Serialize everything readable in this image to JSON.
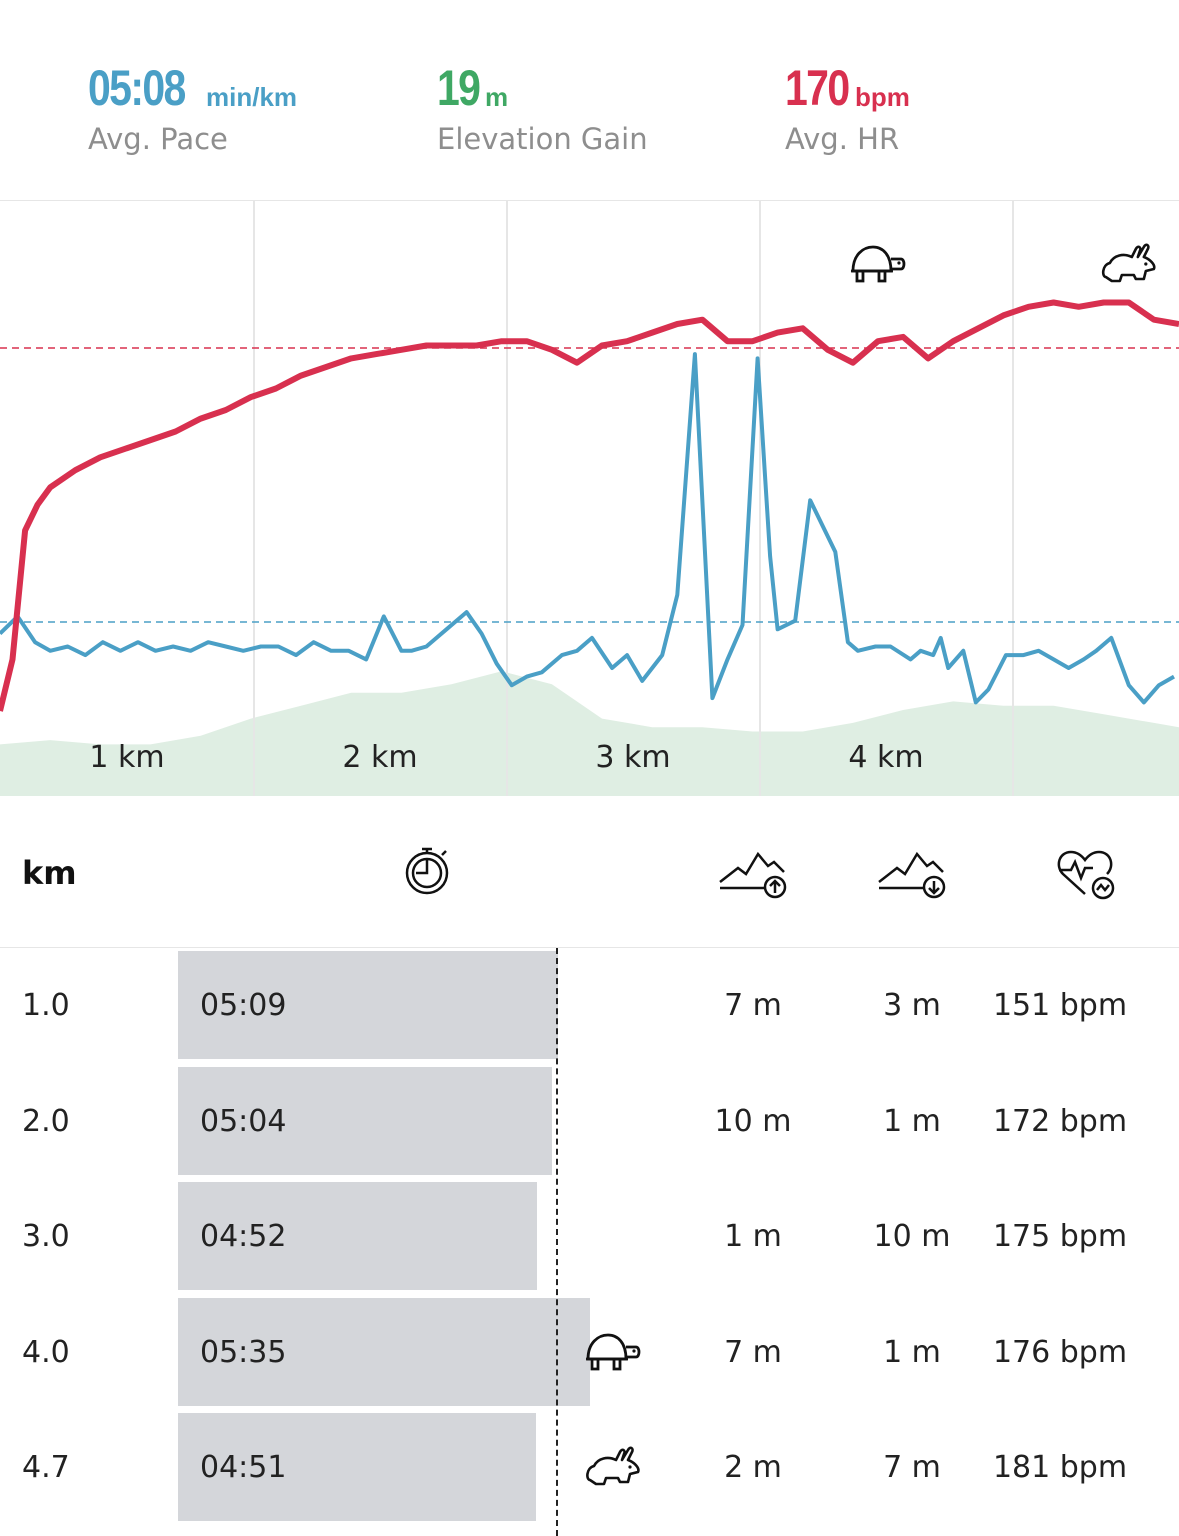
{
  "summary": {
    "pace": {
      "value": "05:08",
      "unit": "min/km",
      "label": "Avg. Pace",
      "color": "#4a9fc6"
    },
    "elevation": {
      "value": "19",
      "unit": "m",
      "label": "Elevation Gain",
      "color": "#3fa864"
    },
    "hr": {
      "value": "170",
      "unit": "bpm",
      "label": "Avg. HR",
      "color": "#d8304f"
    }
  },
  "chart_data": {
    "type": "line",
    "x_ticks": [
      "1 km",
      "2 km",
      "3 km",
      "4 km"
    ],
    "x_range": [
      0,
      4.7
    ],
    "series": [
      {
        "type": "line",
        "color": "#d8304f",
        "x": [
          0,
          0.05,
          0.1,
          0.15,
          0.2,
          0.3,
          0.4,
          0.5,
          0.6,
          0.7,
          0.8,
          0.9,
          1.0,
          1.1,
          1.2,
          1.3,
          1.4,
          1.5,
          1.6,
          1.7,
          1.8,
          1.9,
          2.0,
          2.1,
          2.2,
          2.3,
          2.4,
          2.5,
          2.6,
          2.7,
          2.8,
          2.9,
          3.0,
          3.1,
          3.2,
          3.3,
          3.4,
          3.5,
          3.6,
          3.7,
          3.8,
          3.9,
          4.0,
          4.1,
          4.2,
          4.3,
          4.4,
          4.5,
          4.6,
          4.7
        ],
        "y": [
          0.0,
          0.12,
          0.42,
          0.48,
          0.52,
          0.56,
          0.59,
          0.61,
          0.63,
          0.65,
          0.68,
          0.7,
          0.73,
          0.75,
          0.78,
          0.8,
          0.82,
          0.83,
          0.84,
          0.85,
          0.85,
          0.85,
          0.86,
          0.86,
          0.84,
          0.81,
          0.85,
          0.86,
          0.88,
          0.9,
          0.91,
          0.86,
          0.86,
          0.88,
          0.89,
          0.84,
          0.81,
          0.86,
          0.87,
          0.82,
          0.86,
          0.89,
          0.92,
          0.94,
          0.95,
          0.94,
          0.95,
          0.95,
          0.91,
          0.9
        ]
      },
      {
        "type": "line",
        "color": "#4a9fc6",
        "x": [
          0,
          0.07,
          0.14,
          0.2,
          0.27,
          0.34,
          0.41,
          0.48,
          0.55,
          0.62,
          0.69,
          0.76,
          0.83,
          0.9,
          0.97,
          1.04,
          1.11,
          1.18,
          1.25,
          1.32,
          1.39,
          1.46,
          1.53,
          1.6,
          1.64,
          1.7,
          1.78,
          1.86,
          1.92,
          1.98,
          2.04,
          2.1,
          2.16,
          2.24,
          2.3,
          2.36,
          2.44,
          2.5,
          2.56,
          2.64,
          2.7,
          2.77,
          2.84,
          2.9,
          2.96,
          3.02,
          3.07,
          3.1,
          3.17,
          3.23,
          3.33,
          3.38,
          3.42,
          3.49,
          3.55,
          3.63,
          3.67,
          3.72,
          3.75,
          3.78,
          3.84,
          3.89,
          3.94,
          4.01,
          4.08,
          4.14,
          4.2,
          4.26,
          4.32,
          4.37,
          4.43,
          4.5,
          4.56,
          4.62,
          4.68
        ],
        "y": [
          0.18,
          0.22,
          0.16,
          0.14,
          0.15,
          0.13,
          0.16,
          0.14,
          0.16,
          0.14,
          0.15,
          0.14,
          0.16,
          0.15,
          0.14,
          0.15,
          0.15,
          0.13,
          0.16,
          0.14,
          0.14,
          0.12,
          0.22,
          0.14,
          0.14,
          0.15,
          0.19,
          0.23,
          0.18,
          0.11,
          0.06,
          0.08,
          0.09,
          0.13,
          0.14,
          0.17,
          0.1,
          0.13,
          0.07,
          0.13,
          0.27,
          0.83,
          0.03,
          0.12,
          0.2,
          0.82,
          0.36,
          0.19,
          0.21,
          0.49,
          0.37,
          0.16,
          0.14,
          0.15,
          0.15,
          0.12,
          0.14,
          0.13,
          0.17,
          0.1,
          0.14,
          0.02,
          0.05,
          0.13,
          0.13,
          0.14,
          0.12,
          0.1,
          0.12,
          0.14,
          0.17,
          0.06,
          0.02,
          0.06,
          0.08
        ]
      },
      {
        "type": "area",
        "color": "#dfeee3",
        "x": [
          0,
          0.2,
          0.4,
          0.6,
          0.8,
          1.0,
          1.2,
          1.4,
          1.6,
          1.8,
          2.0,
          2.2,
          2.4,
          2.6,
          2.8,
          3.0,
          3.2,
          3.4,
          3.6,
          3.8,
          4.0,
          4.2,
          4.4,
          4.6,
          4.7
        ],
        "y": [
          0.12,
          0.13,
          0.12,
          0.12,
          0.14,
          0.18,
          0.21,
          0.24,
          0.24,
          0.26,
          0.29,
          0.26,
          0.18,
          0.16,
          0.16,
          0.15,
          0.15,
          0.17,
          0.2,
          0.22,
          0.21,
          0.21,
          0.19,
          0.17,
          0.16
        ]
      }
    ],
    "badges": [
      {
        "icon": "turtle-icon",
        "x": 3.5
      },
      {
        "icon": "rabbit-icon",
        "x": 4.5
      }
    ]
  },
  "table": {
    "header": {
      "km": "km",
      "time_icon": "stopwatch-icon",
      "up_icon": "elevation-up-icon",
      "down_icon": "elevation-down-icon",
      "hr_icon": "heart-rate-icon"
    },
    "rows": [
      {
        "km": "1.0",
        "pace": "05:09",
        "pace_seconds": 309,
        "up": "7 m",
        "down": "3 m",
        "hr": "151 bpm",
        "badge": ""
      },
      {
        "km": "2.0",
        "pace": "05:04",
        "pace_seconds": 304,
        "up": "10 m",
        "down": "1 m",
        "hr": "172 bpm",
        "badge": ""
      },
      {
        "km": "3.0",
        "pace": "04:52",
        "pace_seconds": 292,
        "up": "1 m",
        "down": "10 m",
        "hr": "175 bpm",
        "badge": ""
      },
      {
        "km": "4.0",
        "pace": "05:35",
        "pace_seconds": 335,
        "up": "7 m",
        "down": "1 m",
        "hr": "176 bpm",
        "badge": "turtle-icon"
      },
      {
        "km": "4.7",
        "pace": "04:51",
        "pace_seconds": 291,
        "up": "2 m",
        "down": "7 m",
        "hr": "181 bpm",
        "badge": "rabbit-icon"
      }
    ]
  }
}
